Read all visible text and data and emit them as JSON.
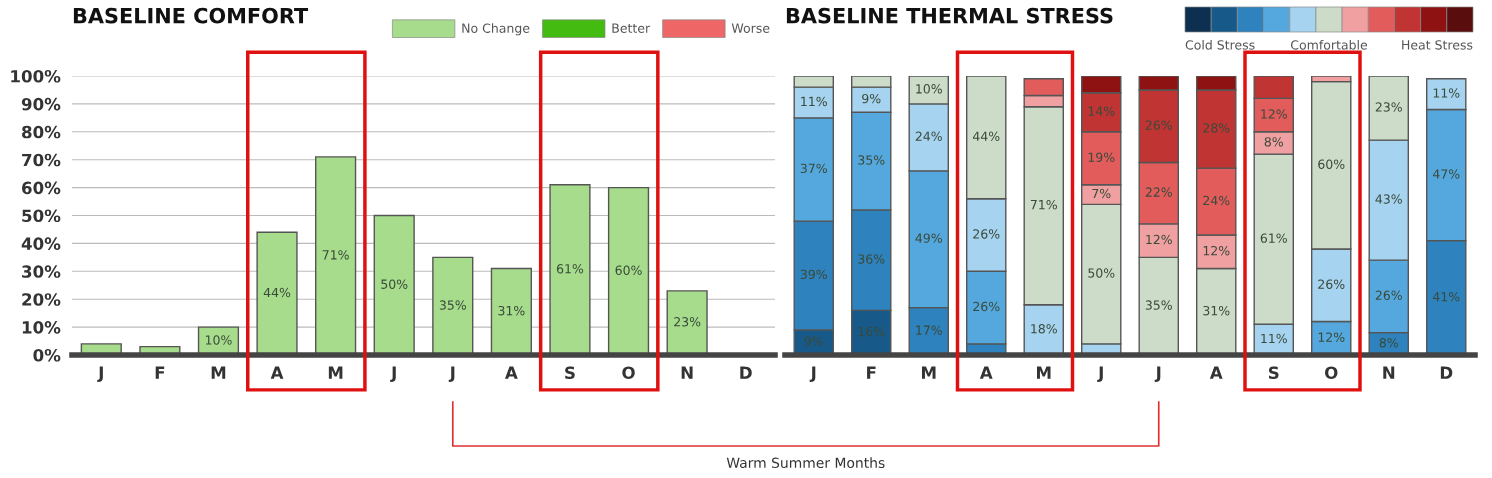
{
  "chart_data": [
    {
      "type": "bar",
      "title": "BASELINE COMFORT",
      "categories": [
        "J",
        "F",
        "M",
        "A",
        "M",
        "J",
        "J",
        "A",
        "S",
        "O",
        "N",
        "D"
      ],
      "series": [
        {
          "name": "No Change",
          "color": "#a6dc8c",
          "values": [
            4,
            3,
            10,
            44,
            71,
            50,
            35,
            31,
            61,
            60,
            23,
            null
          ],
          "value_labels": [
            null,
            null,
            "10%",
            "44%",
            "71%",
            "50%",
            "35%",
            "31%",
            "61%",
            "60%",
            "23%",
            null
          ]
        },
        {
          "name": "Better",
          "color": "#44bb11",
          "values": [
            null,
            null,
            null,
            null,
            null,
            null,
            null,
            null,
            null,
            null,
            null,
            null
          ]
        },
        {
          "name": "Worse",
          "color": "#ee6666",
          "values": [
            null,
            null,
            null,
            null,
            null,
            null,
            null,
            null,
            null,
            null,
            null,
            null
          ]
        }
      ],
      "ylim": [
        0,
        100
      ],
      "yticks": [
        {
          "value": 0,
          "label": "0%"
        },
        {
          "value": 10,
          "label": "10%"
        },
        {
          "value": 20,
          "label": "20%"
        },
        {
          "value": 30,
          "label": "30%"
        },
        {
          "value": 40,
          "label": "40%"
        },
        {
          "value": 50,
          "label": "50%"
        },
        {
          "value": 60,
          "label": "60%"
        },
        {
          "value": 70,
          "label": "70%"
        },
        {
          "value": 80,
          "label": "80%"
        },
        {
          "value": 90,
          "label": "90%"
        },
        {
          "value": 100,
          "label": "100%"
        }
      ],
      "grid": "y",
      "legend": "top right",
      "annotations": [
        "Warm Summer Months"
      ]
    },
    {
      "type": "bar",
      "title": "BASELINE THERMAL STRESS",
      "stacked": true,
      "categories": [
        "J",
        "F",
        "M",
        "A",
        "M",
        "J",
        "J",
        "A",
        "S",
        "O",
        "N",
        "D"
      ],
      "series": [
        {
          "color": "#0d3050",
          "values": [
            null,
            null,
            null,
            null,
            null,
            null,
            null,
            null,
            null,
            null,
            null,
            null
          ]
        },
        {
          "color": "#175a8a",
          "values": [
            9,
            16,
            null,
            null,
            null,
            null,
            null,
            null,
            null,
            null,
            null,
            null
          ],
          "value_labels": [
            "9%",
            "16%",
            null,
            null,
            null,
            null,
            null,
            null,
            null,
            null,
            null,
            null
          ]
        },
        {
          "color": "#2e82bd",
          "values": [
            39,
            36,
            17,
            4,
            null,
            null,
            null,
            null,
            null,
            null,
            8,
            41
          ],
          "value_labels": [
            "39%",
            "36%",
            "17%",
            null,
            null,
            null,
            null,
            null,
            null,
            null,
            "8%",
            "41%"
          ]
        },
        {
          "color": "#55a8dd",
          "values": [
            37,
            35,
            49,
            26,
            null,
            null,
            null,
            null,
            null,
            12,
            26,
            47
          ],
          "value_labels": [
            "37%",
            "35%",
            "49%",
            "26%",
            null,
            null,
            null,
            null,
            null,
            "12%",
            "26%",
            "47%"
          ]
        },
        {
          "color": "#a6d3f0",
          "values": [
            11,
            9,
            24,
            26,
            18,
            4,
            null,
            null,
            11,
            26,
            43,
            11
          ],
          "value_labels": [
            "11%",
            "9%",
            "24%",
            "26%",
            "18%",
            null,
            null,
            null,
            "11%",
            "26%",
            "43%",
            "11%"
          ]
        },
        {
          "color": "#ccdcc8",
          "values": [
            4,
            4,
            10,
            44,
            71,
            50,
            35,
            31,
            61,
            60,
            23,
            null
          ],
          "value_labels": [
            null,
            null,
            "10%",
            "44%",
            "71%",
            "50%",
            "35%",
            "31%",
            "61%",
            "60%",
            "23%",
            null
          ]
        },
        {
          "color": "#f0a0a0",
          "values": [
            null,
            null,
            null,
            null,
            4,
            7,
            12,
            12,
            8,
            2,
            null,
            null
          ],
          "value_labels": [
            null,
            null,
            null,
            null,
            null,
            "7%",
            "12%",
            "12%",
            "8%",
            null,
            null,
            null
          ]
        },
        {
          "color": "#e25c5c",
          "values": [
            null,
            null,
            null,
            null,
            6,
            19,
            22,
            24,
            12,
            null,
            null,
            null
          ],
          "value_labels": [
            null,
            null,
            null,
            null,
            null,
            "19%",
            "22%",
            "24%",
            "12%",
            null,
            null,
            null
          ]
        },
        {
          "color": "#c03434",
          "values": [
            null,
            null,
            null,
            null,
            null,
            14,
            26,
            28,
            8,
            null,
            null,
            null
          ],
          "value_labels": [
            null,
            null,
            null,
            null,
            null,
            "14%",
            "26%",
            "28%",
            null,
            null,
            null,
            null
          ]
        },
        {
          "color": "#8e1212",
          "values": [
            null,
            null,
            null,
            null,
            null,
            6,
            5,
            5,
            null,
            null,
            null,
            null
          ]
        },
        {
          "color": "#5a0d0d",
          "values": [
            null,
            null,
            null,
            null,
            null,
            null,
            null,
            null,
            null,
            null,
            null,
            null
          ]
        }
      ],
      "ylim": [
        0,
        100
      ],
      "tick_labels": "x",
      "annotations": [
        "Cold Stress",
        "Comfortable",
        "Heat Stress"
      ]
    }
  ]
}
